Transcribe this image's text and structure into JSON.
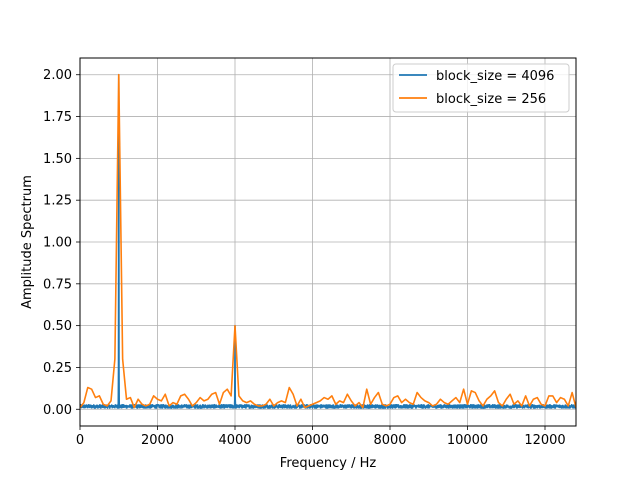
{
  "chart_data": {
    "type": "line",
    "title": "",
    "xlabel": "Frequency / Hz",
    "ylabel": "Amplitude Spectrum",
    "xlim": [
      0,
      12800
    ],
    "ylim": [
      -0.1,
      2.1
    ],
    "xticks": [
      0,
      2000,
      4000,
      6000,
      8000,
      10000,
      12000
    ],
    "xtick_labels": [
      "0",
      "2000",
      "4000",
      "6000",
      "8000",
      "10000",
      "12000"
    ],
    "yticks": [
      0.0,
      0.25,
      0.5,
      0.75,
      1.0,
      1.25,
      1.5,
      1.75,
      2.0
    ],
    "ytick_labels": [
      "0.00",
      "0.25",
      "0.50",
      "0.75",
      "1.00",
      "1.25",
      "1.50",
      "1.75",
      "2.00"
    ],
    "grid": true,
    "legend_position": "top-right",
    "series": [
      {
        "name": "block_size = 4096",
        "color": "#1f77b4",
        "description": "noise floor about 0.02 with narrow peaks",
        "noise_level": 0.02,
        "peaks": [
          {
            "x": 1000,
            "y": 2.0
          },
          {
            "x": 4000,
            "y": 0.5
          }
        ]
      },
      {
        "name": "block_size = 256",
        "color": "#ff7f0e",
        "x": [
          0,
          100,
          200,
          300,
          400,
          500,
          600,
          700,
          800,
          900,
          1000,
          1100,
          1200,
          1300,
          1400,
          1500,
          1600,
          1700,
          1800,
          1900,
          2000,
          2100,
          2200,
          2300,
          2400,
          2500,
          2600,
          2700,
          2800,
          2900,
          3000,
          3100,
          3200,
          3300,
          3400,
          3500,
          3600,
          3700,
          3800,
          3900,
          4000,
          4100,
          4200,
          4300,
          4400,
          4500,
          4600,
          4700,
          4800,
          4900,
          5000,
          5100,
          5200,
          5300,
          5400,
          5500,
          5600,
          5700,
          5800,
          5900,
          6000,
          6100,
          6200,
          6300,
          6400,
          6500,
          6600,
          6700,
          6800,
          6900,
          7000,
          7100,
          7200,
          7300,
          7400,
          7500,
          7600,
          7700,
          7800,
          7900,
          8000,
          8100,
          8200,
          8300,
          8400,
          8500,
          8600,
          8700,
          8800,
          8900,
          9000,
          9100,
          9200,
          9300,
          9400,
          9500,
          9600,
          9700,
          9800,
          9900,
          10000,
          10100,
          10200,
          10300,
          10400,
          10500,
          10600,
          10700,
          10800,
          10900,
          11000,
          11100,
          11200,
          11300,
          11400,
          11500,
          11600,
          11700,
          11800,
          11900,
          12000,
          12100,
          12200,
          12300,
          12400,
          12500,
          12600,
          12700,
          12800
        ],
        "y": [
          0.01,
          0.04,
          0.13,
          0.12,
          0.07,
          0.08,
          0.03,
          0.02,
          0.05,
          0.3,
          2.0,
          0.3,
          0.06,
          0.07,
          0.01,
          0.06,
          0.03,
          0.02,
          0.03,
          0.08,
          0.06,
          0.05,
          0.09,
          0.02,
          0.04,
          0.03,
          0.08,
          0.09,
          0.06,
          0.02,
          0.04,
          0.07,
          0.05,
          0.06,
          0.09,
          0.1,
          0.03,
          0.1,
          0.12,
          0.08,
          0.5,
          0.08,
          0.05,
          0.04,
          0.05,
          0.03,
          0.02,
          0.02,
          0.03,
          0.06,
          0.02,
          0.04,
          0.05,
          0.04,
          0.13,
          0.09,
          0.02,
          0.06,
          0.01,
          0.02,
          0.03,
          0.04,
          0.05,
          0.07,
          0.06,
          0.08,
          0.03,
          0.05,
          0.04,
          0.09,
          0.05,
          0.02,
          0.04,
          0.01,
          0.12,
          0.03,
          0.07,
          0.1,
          0.03,
          0.02,
          0.03,
          0.07,
          0.08,
          0.04,
          0.06,
          0.04,
          0.03,
          0.1,
          0.07,
          0.05,
          0.04,
          0.02,
          0.03,
          0.06,
          0.04,
          0.03,
          0.05,
          0.07,
          0.04,
          0.12,
          0.03,
          0.11,
          0.1,
          0.05,
          0.02,
          0.06,
          0.08,
          0.11,
          0.04,
          0.02,
          0.06,
          0.09,
          0.03,
          0.05,
          0.02,
          0.08,
          0.02,
          0.06,
          0.07,
          0.03,
          0.02,
          0.08,
          0.08,
          0.04,
          0.07,
          0.06,
          0.02,
          0.1,
          0.01
        ]
      }
    ]
  }
}
